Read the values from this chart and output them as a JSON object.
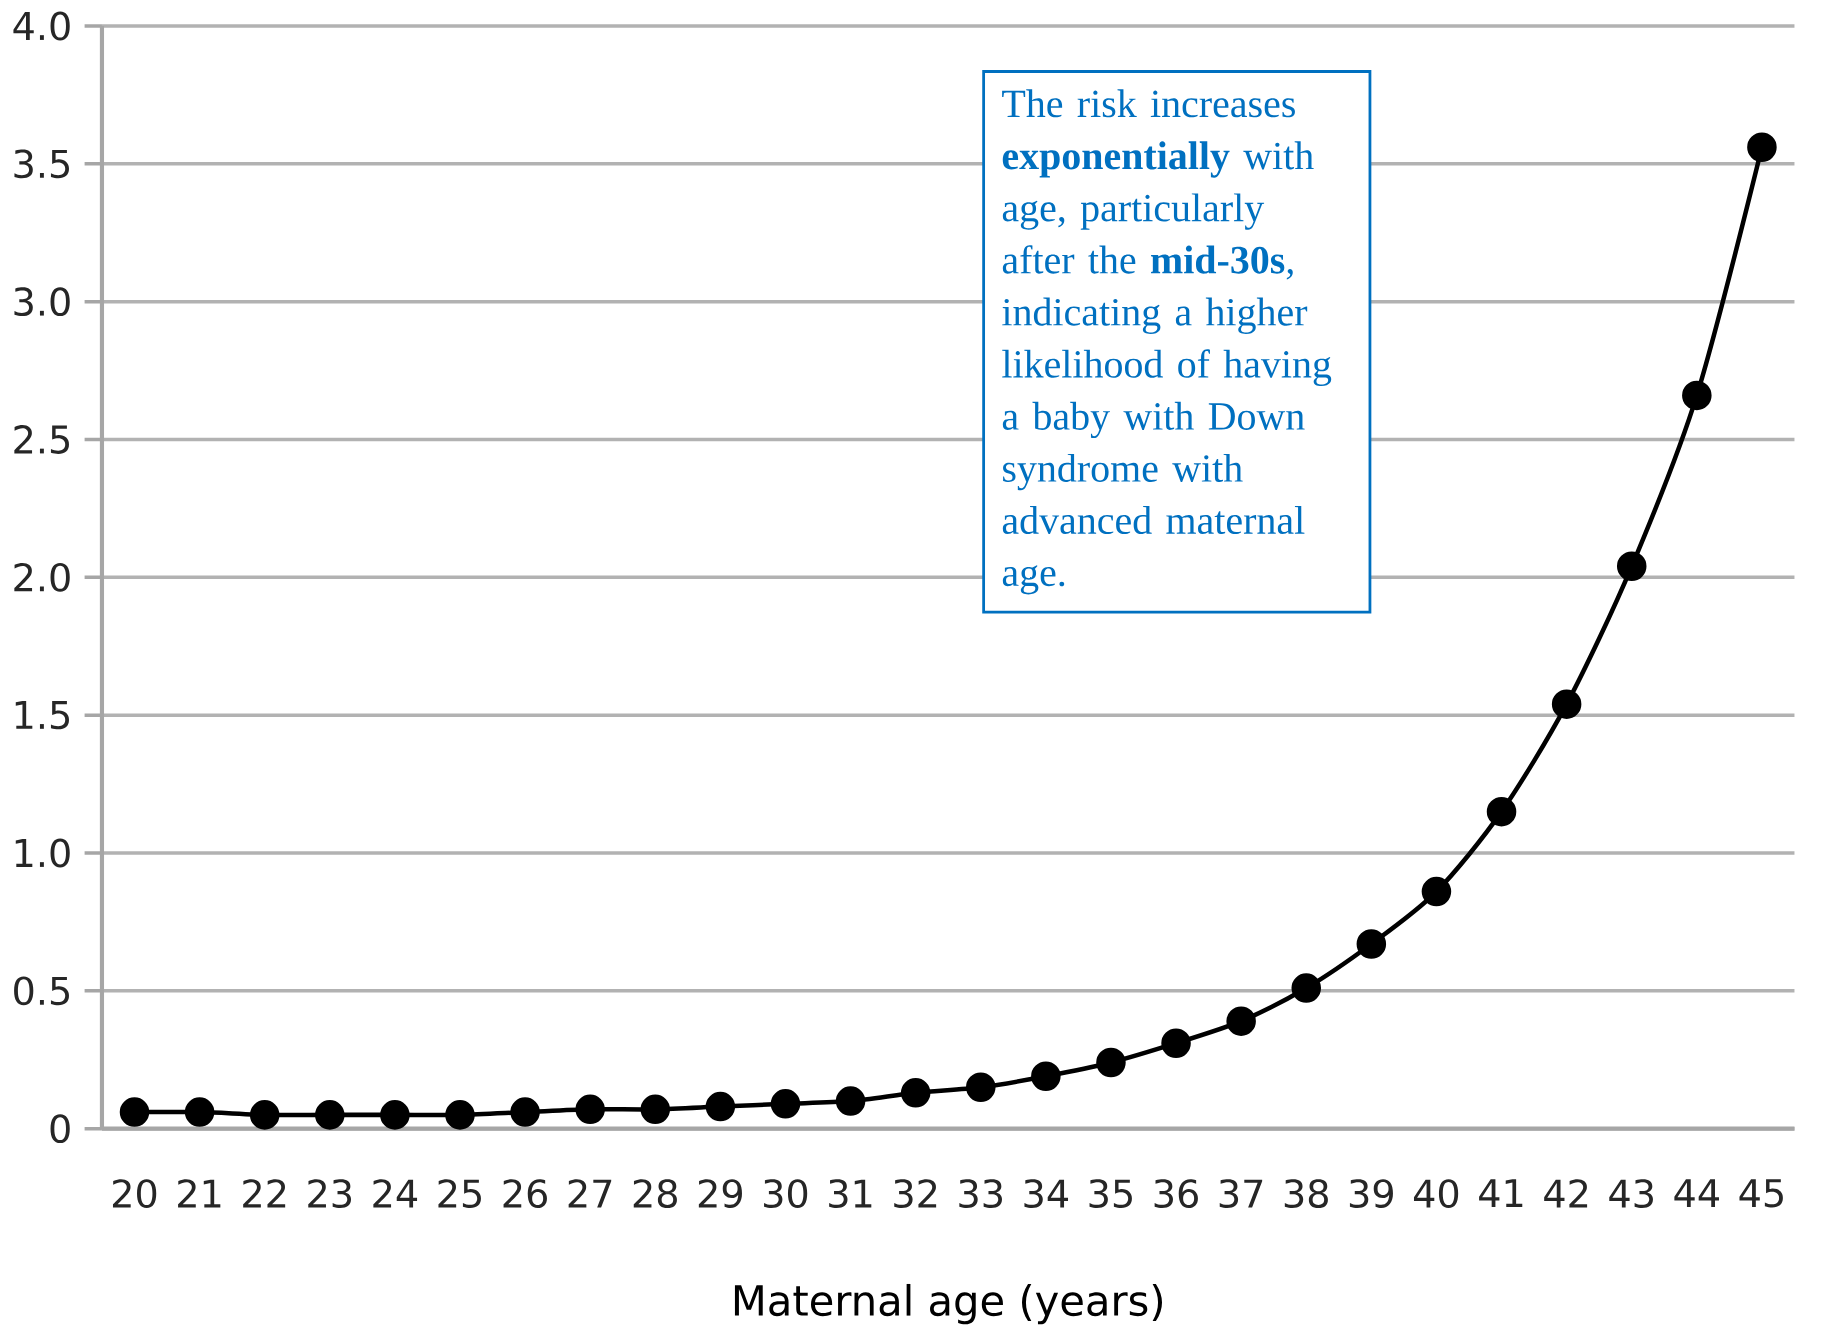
{
  "chart_data": {
    "type": "line",
    "xlabel": "Maternal age (years)",
    "categories": [
      "20",
      "21",
      "22",
      "23",
      "24",
      "25",
      "26",
      "27",
      "28",
      "29",
      "30",
      "31",
      "32",
      "33",
      "34",
      "35",
      "36",
      "37",
      "38",
      "39",
      "40",
      "41",
      "42",
      "43",
      "44",
      "45"
    ],
    "values": [
      0.06,
      0.06,
      0.05,
      0.05,
      0.05,
      0.05,
      0.06,
      0.07,
      0.07,
      0.08,
      0.09,
      0.1,
      0.13,
      0.15,
      0.19,
      0.24,
      0.31,
      0.39,
      0.51,
      0.67,
      0.86,
      1.15,
      1.54,
      2.04,
      2.66,
      3.56
    ],
    "color": "#000000",
    "marker": "circle",
    "line_style": "solid",
    "grid": "y",
    "ylim": [
      0,
      4
    ],
    "yticks": [
      0,
      {
        "value": 0.5,
        "label": "0.5"
      },
      {
        "value": 1,
        "label": "1.0"
      },
      {
        "value": 1.5,
        "label": "1.5"
      },
      {
        "value": 2,
        "label": "2.0"
      },
      {
        "value": 2.5,
        "label": "2.5"
      },
      {
        "value": 3,
        "label": "3.0"
      },
      {
        "value": 3.5,
        "label": "3.5"
      },
      {
        "value": 4,
        "label": "4.0"
      }
    ],
    "annotations": [
      "The risk increases **exponentially** with age, particularly after the **mid-30s**, indicating a higher likelihood of having a baby with Down syndrome with advanced maternal age."
    ]
  }
}
